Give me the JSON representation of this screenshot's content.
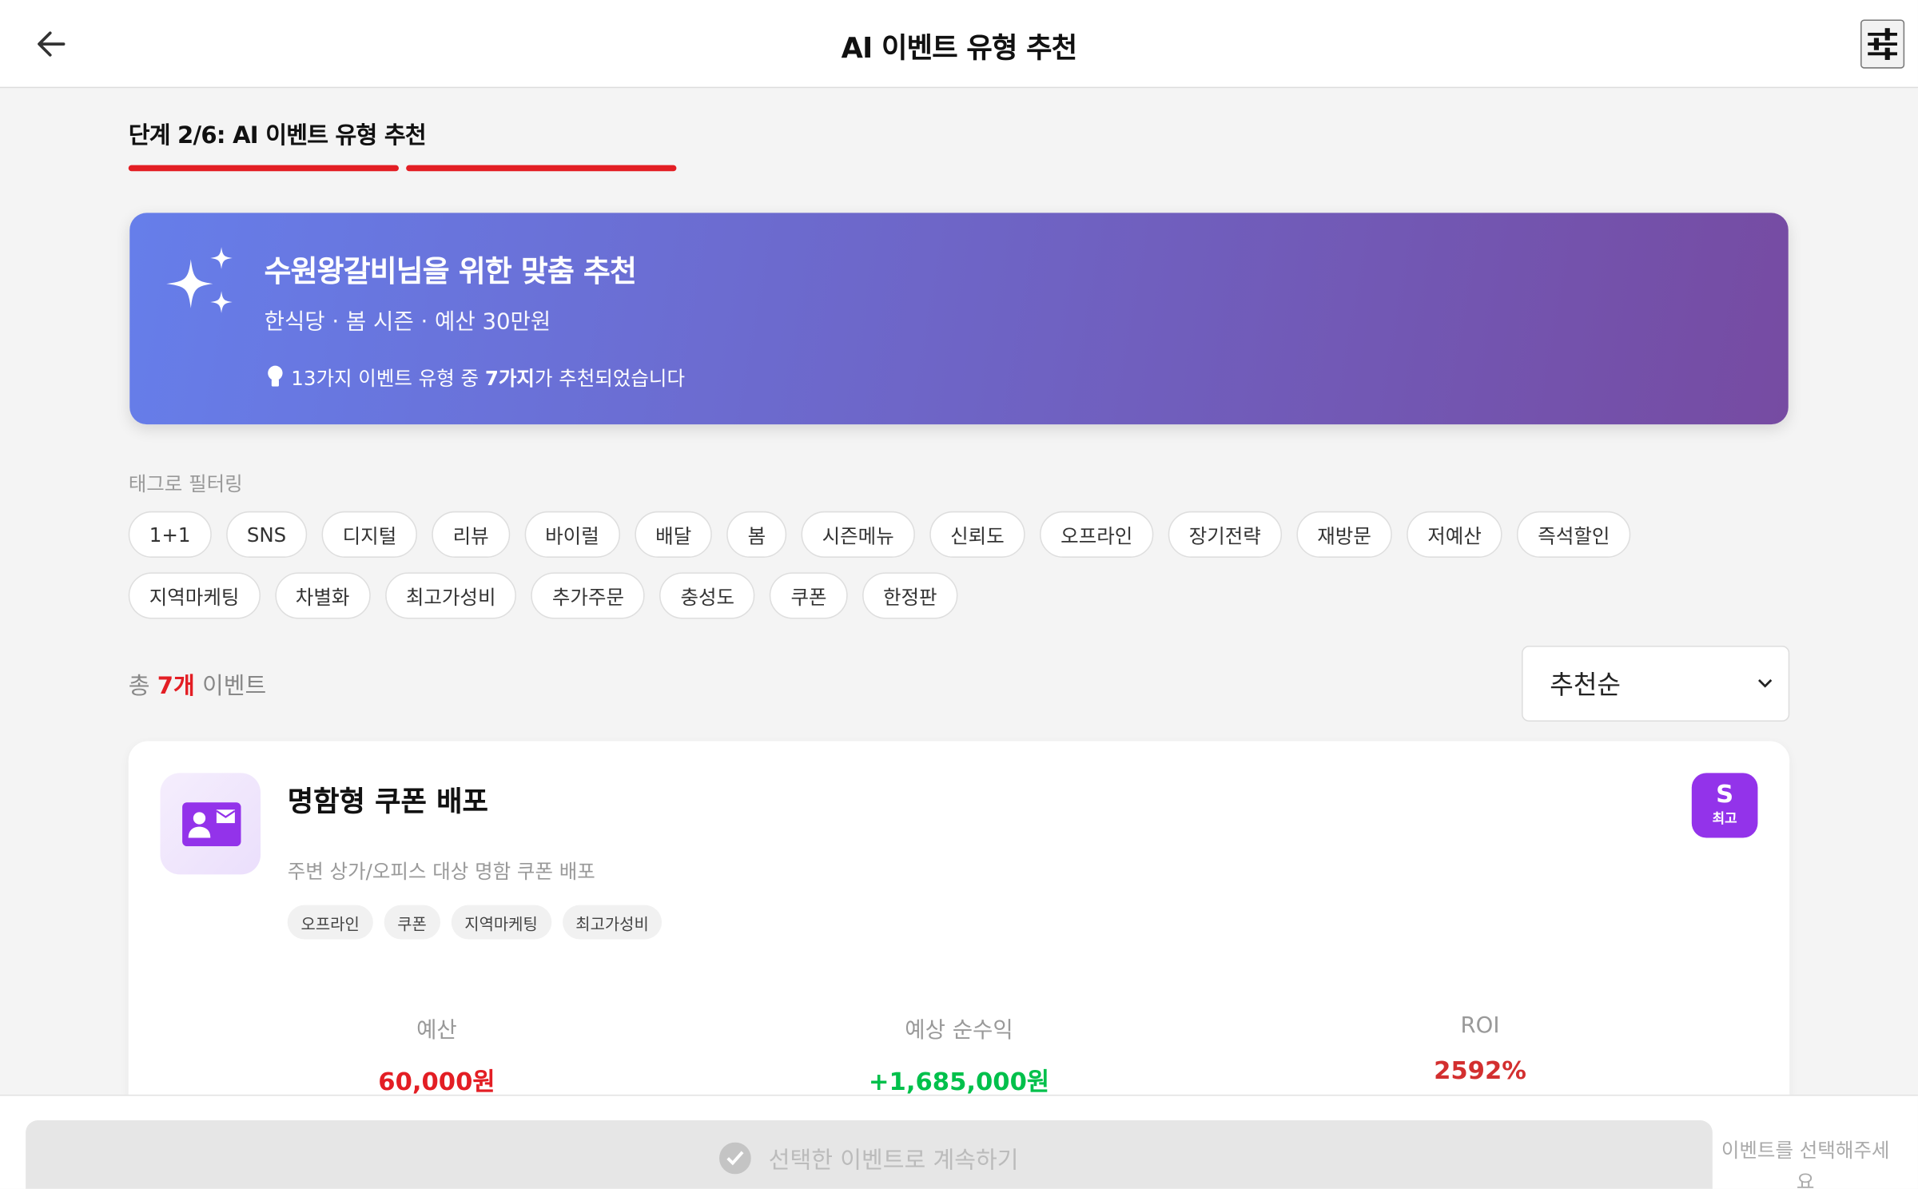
{
  "header": {
    "title": "AI 이벤트 유형 추천",
    "back_icon": "arrow-left-icon",
    "filter_icon": "sliders-icon"
  },
  "step": {
    "label": "단계 2/6: AI 이벤트 유형 추천",
    "current": 2,
    "total": 6,
    "color": "#e31e24"
  },
  "banner": {
    "title": "수원왕갈비님을 위한 맞춤 추천",
    "subtitle": "한식당 · 봄 시즌 · 예산 30만원",
    "tip_prefix": "13가지 이벤트 유형 중 ",
    "tip_bold": "7가지",
    "tip_suffix": "가 추천되었습니다",
    "gradient": [
      "#667eea",
      "#764ba2"
    ]
  },
  "filter": {
    "label": "태그로 필터링",
    "tags": [
      "1+1",
      "SNS",
      "디지털",
      "리뷰",
      "바이럴",
      "배달",
      "봄",
      "시즌메뉴",
      "신뢰도",
      "오프라인",
      "장기전략",
      "재방문",
      "저예산",
      "즉석할인",
      "지역마케팅",
      "차별화",
      "최고가성비",
      "추가주문",
      "충성도",
      "쿠폰",
      "한정판"
    ]
  },
  "results": {
    "prefix": "총 ",
    "count": "7개",
    "suffix": " 이벤트"
  },
  "sort": {
    "selected": "추천순"
  },
  "card": {
    "title": "명함형 쿠폰 배포",
    "description": "주변 상가/오피스 대상 명함 쿠폰 배포",
    "tags": [
      "오프라인",
      "쿠폰",
      "지역마케팅",
      "최고가성비"
    ],
    "badge": {
      "grade": "S",
      "label": "최고",
      "color": "#9333ea"
    },
    "stats": [
      {
        "label": "예산",
        "value": "60,000원",
        "color": "#e31e24"
      },
      {
        "label": "예상 순수익",
        "value": "+1,685,000원",
        "color": "#00c04b"
      },
      {
        "label": "ROI",
        "value": "2592%",
        "color": "#d32f2f"
      }
    ]
  },
  "footer": {
    "continue_label": "선택한 이벤트로 계속하기",
    "hint": "이벤트를 선택해주세요"
  }
}
